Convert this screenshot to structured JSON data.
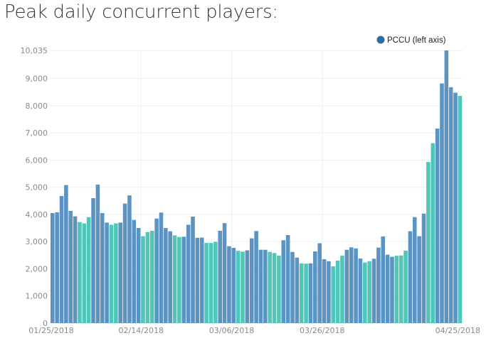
{
  "page": {
    "title": "Peak daily concurrent players:"
  },
  "chart_data": {
    "type": "bar",
    "legend": {
      "label": "PCCU (left axis)",
      "color": "#2e6fa3",
      "position": "top-right"
    },
    "colors": {
      "weekday": "#5b93c2",
      "weekend": "#4fc6b7",
      "grid": "#eeeeee"
    },
    "ylim": [
      0,
      10035
    ],
    "y_ticks": [
      "0",
      "1,000",
      "2,000",
      "3,000",
      "4,000",
      "5,000",
      "6,000",
      "7,000",
      "8,000",
      "9,000",
      "10,035"
    ],
    "x_ticks": [
      "01/25/2018",
      "02/14/2018",
      "03/06/2018",
      "03/26/2018",
      "04/25/2018"
    ],
    "values": [
      4050,
      4080,
      4680,
      5080,
      4130,
      3930,
      3720,
      3670,
      3900,
      4600,
      5100,
      4050,
      3700,
      3620,
      3670,
      3700,
      4400,
      4700,
      3800,
      3500,
      3200,
      3350,
      3400,
      3850,
      4070,
      3500,
      3380,
      3230,
      3170,
      3180,
      3620,
      3920,
      3140,
      3150,
      2950,
      2950,
      2990,
      3400,
      3680,
      2830,
      2770,
      2660,
      2630,
      2680,
      3120,
      3390,
      2700,
      2700,
      2620,
      2580,
      2480,
      3050,
      3240,
      2620,
      2410,
      2200,
      2190,
      2200,
      2640,
      2940,
      2350,
      2280,
      2090,
      2300,
      2480,
      2700,
      2790,
      2750,
      2380,
      2230,
      2280,
      2370,
      2780,
      3190,
      2520,
      2440,
      2480,
      2490,
      2670,
      3380,
      3900,
      3200,
      4030,
      5930,
      6620,
      7160,
      8820,
      10035,
      8680,
      8480,
      8360
    ],
    "is_weekend": [
      0,
      0,
      0,
      0,
      0,
      0,
      1,
      1,
      1,
      0,
      0,
      0,
      0,
      1,
      1,
      0,
      0,
      0,
      0,
      0,
      1,
      1,
      1,
      0,
      0,
      0,
      0,
      1,
      1,
      0,
      0,
      0,
      0,
      0,
      1,
      1,
      1,
      0,
      0,
      0,
      0,
      1,
      1,
      0,
      0,
      0,
      0,
      0,
      1,
      1,
      1,
      0,
      0,
      0,
      0,
      1,
      1,
      0,
      0,
      0,
      0,
      0,
      1,
      1,
      1,
      0,
      0,
      0,
      0,
      1,
      1,
      0,
      0,
      0,
      0,
      0,
      1,
      1,
      1,
      0,
      0,
      0,
      0,
      1,
      1,
      0,
      0,
      0,
      0,
      0,
      1
    ]
  }
}
